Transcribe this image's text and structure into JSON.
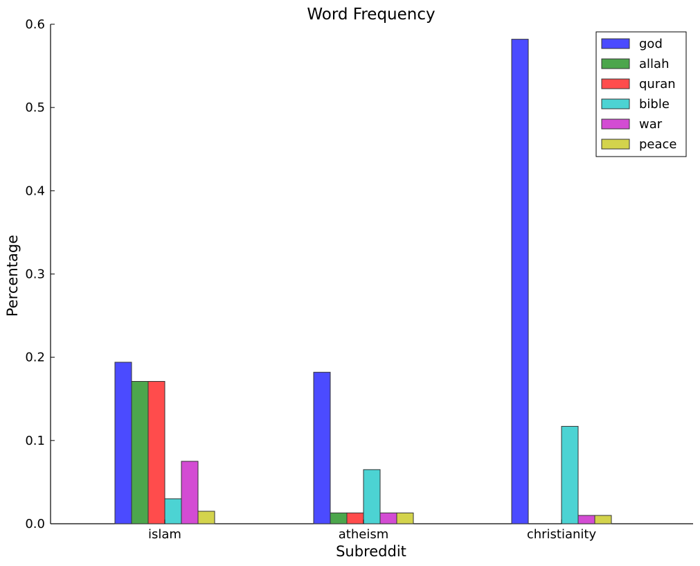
{
  "chart_data": {
    "type": "bar",
    "title": "Word Frequency",
    "xlabel": "Subreddit",
    "ylabel": "Percentage",
    "categories": [
      "islam",
      "atheism",
      "christianity"
    ],
    "ylim": [
      0,
      0.6
    ],
    "yticks": [
      "0.0",
      "0.1",
      "0.2",
      "0.3",
      "0.4",
      "0.5",
      "0.6"
    ],
    "grid": false,
    "legend_position": "top-right",
    "series": [
      {
        "name": "god",
        "color": "#4b4bff",
        "values": [
          0.194,
          0.182,
          0.582
        ]
      },
      {
        "name": "allah",
        "color": "#4ca64c",
        "values": [
          0.171,
          0.013,
          0.0
        ]
      },
      {
        "name": "quran",
        "color": "#ff4c4c",
        "values": [
          0.171,
          0.013,
          0.0
        ]
      },
      {
        "name": "bible",
        "color": "#4cd3d3",
        "values": [
          0.03,
          0.065,
          0.117
        ]
      },
      {
        "name": "war",
        "color": "#d34cd3",
        "values": [
          0.075,
          0.013,
          0.01
        ]
      },
      {
        "name": "peace",
        "color": "#d3d34c",
        "values": [
          0.015,
          0.013,
          0.01
        ]
      }
    ]
  }
}
